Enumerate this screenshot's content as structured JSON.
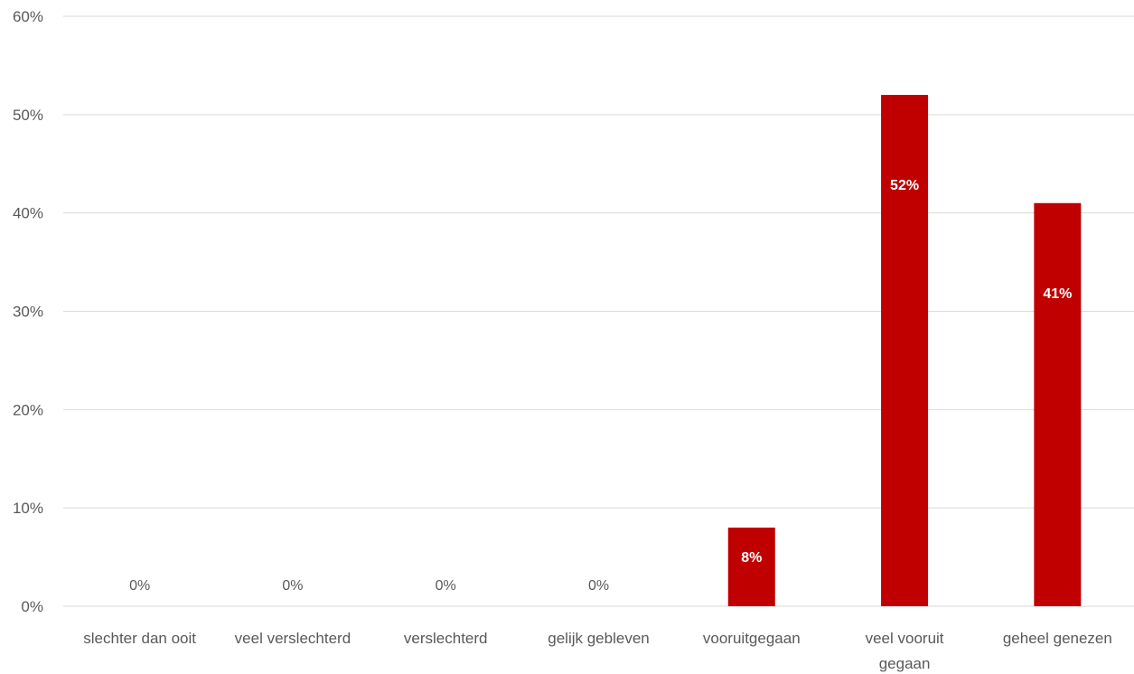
{
  "chart_data": {
    "type": "bar",
    "categories": [
      [
        "slechter dan ooit"
      ],
      [
        "veel verslechterd"
      ],
      [
        "verslechterd"
      ],
      [
        "gelijk gebleven"
      ],
      [
        "vooruitgegaan"
      ],
      [
        "veel vooruit",
        "gegaan"
      ],
      [
        "geheel genezen"
      ]
    ],
    "values": [
      0,
      0,
      0,
      0,
      8,
      52,
      41
    ],
    "data_labels": [
      "0%",
      "0%",
      "0%",
      "0%",
      "8%",
      "52%",
      "41%"
    ],
    "ylim": [
      0,
      60
    ],
    "yticks": [
      0,
      10,
      20,
      30,
      40,
      50,
      60
    ],
    "ytick_labels": [
      "0%",
      "10%",
      "20%",
      "30%",
      "40%",
      "50%",
      "60%"
    ],
    "grid": true,
    "legend": "none",
    "bar_color": "#c00000",
    "title": "",
    "xlabel": "",
    "ylabel": ""
  }
}
